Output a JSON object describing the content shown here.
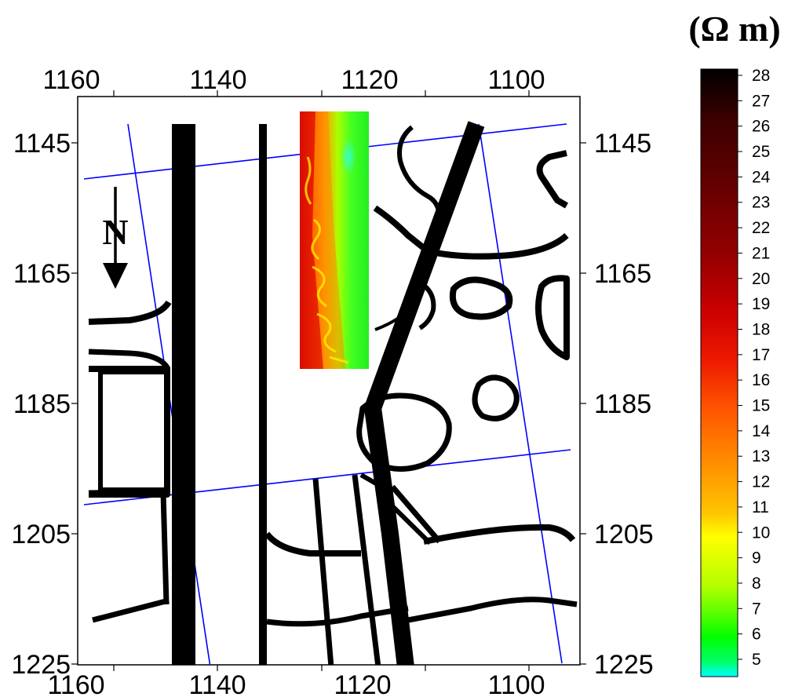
{
  "map": {
    "north_label": "N",
    "x_ticks": [
      "1160",
      "1140",
      "1120",
      "1100"
    ],
    "y_ticks": [
      "1145",
      "1165",
      "1185",
      "1205",
      "1225"
    ],
    "x_range": [
      1160,
      1090
    ],
    "y_range": [
      1135,
      1225
    ],
    "feature_color": "#000000",
    "grid_line_color": "#0000ff"
  },
  "colorbar": {
    "unit": "(Ω m)",
    "labels": [
      "28",
      "27",
      "26",
      "25",
      "24",
      "23",
      "22",
      "21",
      "20",
      "19",
      "18",
      "17",
      "16",
      "15",
      "14",
      "13",
      "12",
      "11",
      "10",
      "9",
      "8",
      "7",
      "6",
      "5"
    ],
    "min": 4.5,
    "max": 28.5,
    "stops": [
      {
        "value": 28,
        "color": "#000000"
      },
      {
        "value": 26,
        "color": "#3c0000"
      },
      {
        "value": 24,
        "color": "#5a0000"
      },
      {
        "value": 21,
        "color": "#960000"
      },
      {
        "value": 19,
        "color": "#cc0000"
      },
      {
        "value": 17,
        "color": "#ee1a00"
      },
      {
        "value": 15,
        "color": "#ff5500"
      },
      {
        "value": 13,
        "color": "#ff8c00"
      },
      {
        "value": 11,
        "color": "#ffc400"
      },
      {
        "value": 10,
        "color": "#ffff00"
      },
      {
        "value": 8,
        "color": "#b4ff00"
      },
      {
        "value": 7,
        "color": "#5cff00"
      },
      {
        "value": 6,
        "color": "#00ff00"
      },
      {
        "value": 5,
        "color": "#00ff66"
      },
      {
        "value": 4.5,
        "color": "#00ffff"
      }
    ]
  }
}
